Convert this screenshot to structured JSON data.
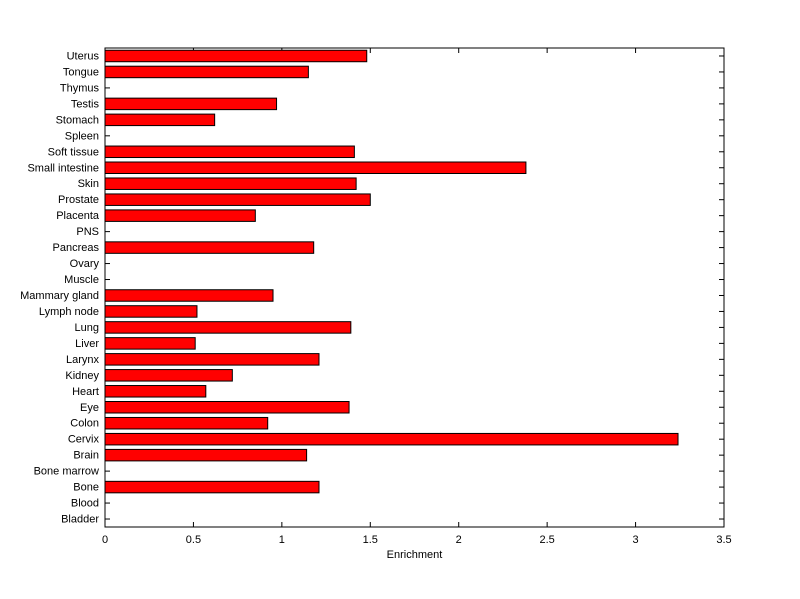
{
  "chart_data": {
    "type": "bar",
    "orientation": "horizontal",
    "title": "",
    "xlabel": "Enrichment",
    "ylabel": "",
    "xlim": [
      0,
      3.5
    ],
    "xticks": [
      0,
      0.5,
      1,
      1.5,
      2,
      2.5,
      3,
      3.5
    ],
    "xtick_labels": [
      "0",
      "0.5",
      "1",
      "1.5",
      "2",
      "2.5",
      "3",
      "3.5"
    ],
    "category_order": "top_to_bottom",
    "categories": [
      "Uterus",
      "Tongue",
      "Thymus",
      "Testis",
      "Stomach",
      "Spleen",
      "Soft tissue",
      "Small intestine",
      "Skin",
      "Prostate",
      "Placenta",
      "PNS",
      "Pancreas",
      "Ovary",
      "Muscle",
      "Mammary gland",
      "Lymph node",
      "Lung",
      "Liver",
      "Larynx",
      "Kidney",
      "Heart",
      "Eye",
      "Colon",
      "Cervix",
      "Brain",
      "Bone marrow",
      "Bone",
      "Blood",
      "Bladder"
    ],
    "values": [
      1.48,
      1.15,
      0,
      0.97,
      0.62,
      0,
      1.41,
      2.38,
      1.42,
      1.5,
      0.85,
      0,
      1.18,
      0,
      0,
      0.95,
      0.52,
      1.39,
      0.51,
      1.21,
      0.72,
      0.57,
      1.38,
      0.92,
      3.24,
      1.14,
      0,
      1.21,
      0,
      0
    ],
    "bar_color": "#FF0000",
    "bar_edge_color": "#000000",
    "axis_color": "#000000",
    "background_color": "#FFFFFF",
    "grid": false,
    "legend": null
  }
}
